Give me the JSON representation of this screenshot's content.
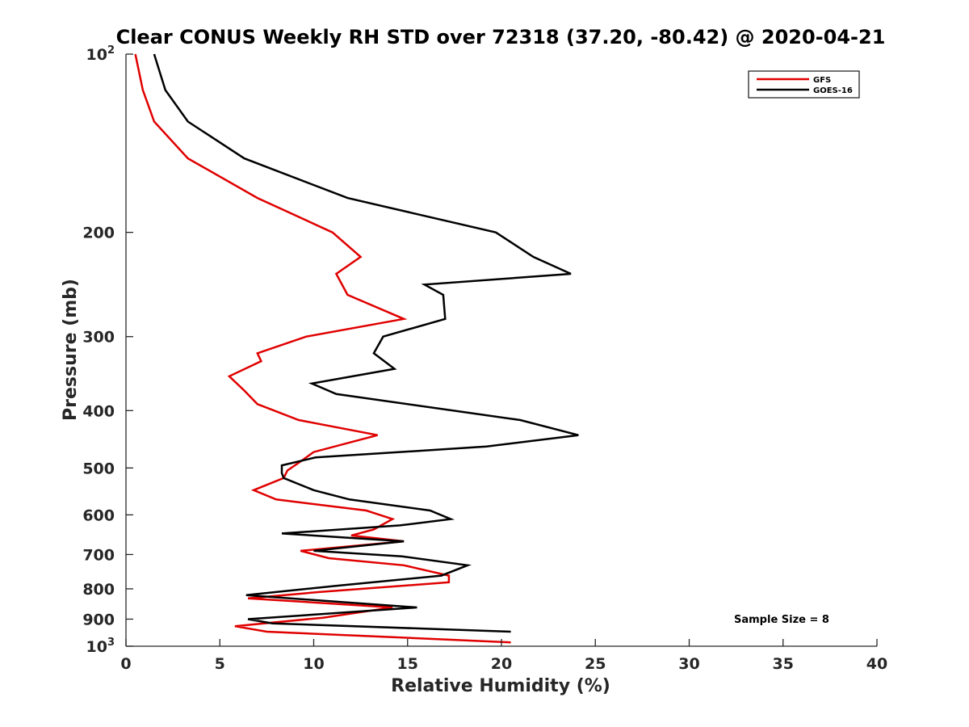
{
  "chart_data": {
    "type": "line",
    "title": "Clear CONUS Weekly RH STD over 72318 (37.20, -80.42) @ 2020-04-21",
    "xlabel": "Relative Humidity (%)",
    "ylabel": "Pressure (mb)",
    "xlim": [
      0,
      40
    ],
    "ylim": [
      100,
      1000
    ],
    "y_scale": "log",
    "y_reversed": true,
    "x_ticks": [
      "0",
      "5",
      "10",
      "15",
      "20",
      "25",
      "30",
      "35",
      "40"
    ],
    "y_ticks": [
      {
        "value": 100,
        "base": "10",
        "exp": "2"
      },
      {
        "value": 200,
        "label": "200"
      },
      {
        "value": 300,
        "label": "300"
      },
      {
        "value": 400,
        "label": "400"
      },
      {
        "value": 500,
        "label": "500"
      },
      {
        "value": 600,
        "label": "600"
      },
      {
        "value": 700,
        "label": "700"
      },
      {
        "value": 800,
        "label": "800"
      },
      {
        "value": 900,
        "label": "900"
      },
      {
        "value": 1000,
        "base": "10",
        "exp": "3"
      }
    ],
    "grid": false,
    "legend_position": "top-right",
    "annotation": "Sample Size = 8",
    "series": [
      {
        "name": "GFS",
        "color": "#e00000",
        "points": [
          [
            0.5,
            100
          ],
          [
            0.9,
            115
          ],
          [
            1.5,
            130
          ],
          [
            3.3,
            150
          ],
          [
            7.0,
            175
          ],
          [
            11.0,
            200
          ],
          [
            12.5,
            220
          ],
          [
            11.2,
            235
          ],
          [
            11.8,
            255
          ],
          [
            14.8,
            280
          ],
          [
            9.6,
            300
          ],
          [
            7.0,
            320
          ],
          [
            7.2,
            330
          ],
          [
            5.5,
            350
          ],
          [
            6.3,
            370
          ],
          [
            7.0,
            390
          ],
          [
            9.2,
            415
          ],
          [
            13.4,
            440
          ],
          [
            10.0,
            470
          ],
          [
            9.2,
            490
          ],
          [
            8.6,
            505
          ],
          [
            8.4,
            520
          ],
          [
            6.8,
            545
          ],
          [
            8.0,
            565
          ],
          [
            12.8,
            590
          ],
          [
            14.2,
            610
          ],
          [
            13.2,
            635
          ],
          [
            12.0,
            650
          ],
          [
            14.8,
            665
          ],
          [
            9.3,
            690
          ],
          [
            10.8,
            710
          ],
          [
            14.8,
            730
          ],
          [
            17.2,
            760
          ],
          [
            17.2,
            780
          ],
          [
            10.3,
            810
          ],
          [
            6.5,
            830
          ],
          [
            14.2,
            860
          ],
          [
            10.5,
            895
          ],
          [
            5.8,
            925
          ],
          [
            7.5,
            945
          ],
          [
            20.5,
            985
          ]
        ]
      },
      {
        "name": "GOES-16",
        "color": "#000000",
        "points": [
          [
            1.5,
            100
          ],
          [
            2.1,
            115
          ],
          [
            3.3,
            130
          ],
          [
            6.3,
            150
          ],
          [
            11.8,
            175
          ],
          [
            19.7,
            200
          ],
          [
            21.7,
            220
          ],
          [
            23.7,
            235
          ],
          [
            15.9,
            245
          ],
          [
            16.9,
            255
          ],
          [
            17.0,
            280
          ],
          [
            13.7,
            300
          ],
          [
            13.2,
            320
          ],
          [
            14.3,
            340
          ],
          [
            9.9,
            360
          ],
          [
            11.2,
            375
          ],
          [
            21.0,
            415
          ],
          [
            24.1,
            440
          ],
          [
            19.2,
            460
          ],
          [
            10.1,
            480
          ],
          [
            8.3,
            495
          ],
          [
            8.3,
            510
          ],
          [
            8.4,
            520
          ],
          [
            10.0,
            545
          ],
          [
            11.9,
            565
          ],
          [
            16.2,
            590
          ],
          [
            17.3,
            610
          ],
          [
            14.6,
            625
          ],
          [
            8.3,
            645
          ],
          [
            14.8,
            665
          ],
          [
            10.0,
            690
          ],
          [
            14.7,
            705
          ],
          [
            18.2,
            730
          ],
          [
            16.8,
            760
          ],
          [
            11.3,
            790
          ],
          [
            6.4,
            820
          ],
          [
            15.5,
            860
          ],
          [
            11.0,
            880
          ],
          [
            6.5,
            900
          ],
          [
            7.8,
            915
          ],
          [
            20.5,
            945
          ]
        ]
      }
    ]
  }
}
